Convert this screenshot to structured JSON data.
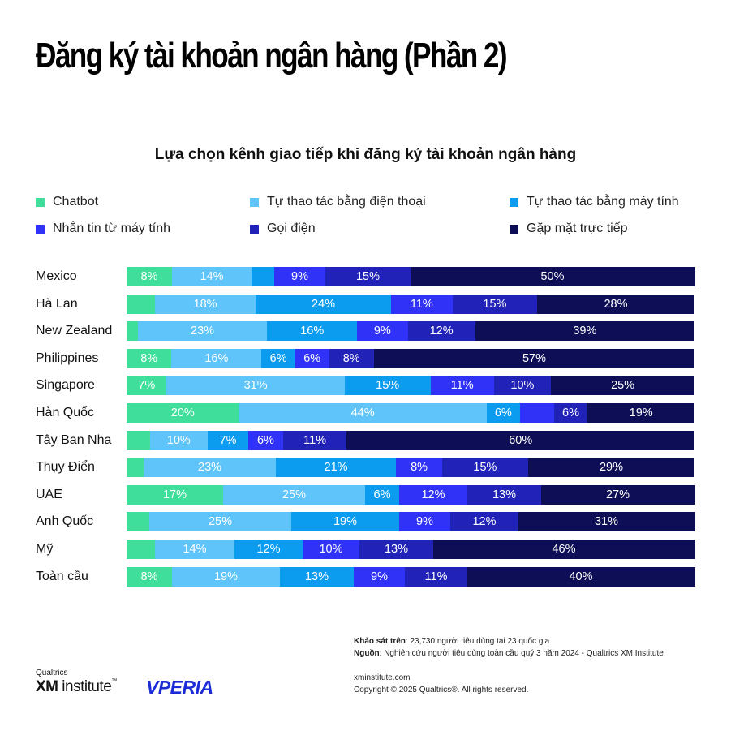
{
  "title": "Đăng ký tài khoản ngân hàng (Phần 2)",
  "chart_data": {
    "type": "bar",
    "orientation": "horizontal",
    "stacked": true,
    "title": "Lựa chọn kênh giao tiếp khi đăng ký tài khoản ngân hàng",
    "xlim": [
      0,
      100
    ],
    "legend_position": "top",
    "categories": [
      "Mexico",
      "Hà Lan",
      "New Zealand",
      "Philippines",
      "Singapore",
      "Hàn Quốc",
      "Tây Ban Nha",
      "Thụy Điển",
      "UAE",
      "Anh Quốc",
      "Mỹ",
      "Toàn cầu"
    ],
    "series": [
      {
        "name": "Chatbot",
        "color": "#3fde9a",
        "values": [
          8,
          5,
          2,
          8,
          7,
          20,
          4,
          3,
          17,
          4,
          5,
          8
        ],
        "labels": [
          "8%",
          "",
          "",
          "8%",
          "7%",
          "20%",
          "",
          "",
          "17%",
          "",
          "",
          "8%"
        ]
      },
      {
        "name": "Tự thao tác bằng điện thoại",
        "color": "#5ec4fa",
        "values": [
          14,
          18,
          23,
          16,
          31,
          44,
          10,
          23,
          25,
          25,
          14,
          19
        ],
        "labels": [
          "14%",
          "18%",
          "23%",
          "16%",
          "31%",
          "44%",
          "10%",
          "23%",
          "25%",
          "25%",
          "14%",
          "19%"
        ]
      },
      {
        "name": "Tự thao tác bằng máy tính",
        "color": "#0b9cf0",
        "values": [
          4,
          24,
          16,
          6,
          15,
          6,
          7,
          21,
          6,
          19,
          12,
          13
        ],
        "labels": [
          "",
          "24%",
          "16%",
          "6%",
          "15%",
          "6%",
          "7%",
          "21%",
          "6%",
          "19%",
          "12%",
          "13%"
        ]
      },
      {
        "name": "Nhắn tin từ máy tính",
        "color": "#3033f7",
        "values": [
          9,
          11,
          9,
          6,
          11,
          6,
          6,
          8,
          12,
          9,
          10,
          9
        ],
        "labels": [
          "9%",
          "11%",
          "9%",
          "6%",
          "11%",
          "",
          "6%",
          "8%",
          "12%",
          "9%",
          "10%",
          "9%"
        ]
      },
      {
        "name": "Gọi điện",
        "color": "#2022b8",
        "values": [
          15,
          15,
          12,
          8,
          10,
          6,
          11,
          15,
          13,
          12,
          13,
          11
        ],
        "labels": [
          "15%",
          "15%",
          "12%",
          "8%",
          "10%",
          "6%",
          "11%",
          "15%",
          "13%",
          "12%",
          "13%",
          "11%"
        ]
      },
      {
        "name": "Gặp mặt trực tiếp",
        "color": "#0d0e55",
        "values": [
          50,
          28,
          39,
          57,
          25,
          19,
          60,
          29,
          27,
          31,
          46,
          40
        ],
        "labels": [
          "50%",
          "28%",
          "39%",
          "57%",
          "25%",
          "19%",
          "60%",
          "29%",
          "27%",
          "31%",
          "46%",
          "40%"
        ]
      }
    ]
  },
  "footer": {
    "survey_label": "Khảo sát trên",
    "survey_text": ": 23,730 người tiêu dùng tại 23 quốc gia",
    "source_label": "Nguồn",
    "source_text": ": Nghiên cứu người tiêu dùng toàn cầu quý 3 năm 2024 - Qualtrics XM Institute",
    "site": "xminstitute.com",
    "copyright": "Copyright © 2025 Qualtrics®. All rights reserved."
  },
  "logos": {
    "qualtrics": "Qualtrics",
    "xm": "XM",
    "institute": "institute",
    "tm": "™",
    "vperia": "VPERIA"
  }
}
